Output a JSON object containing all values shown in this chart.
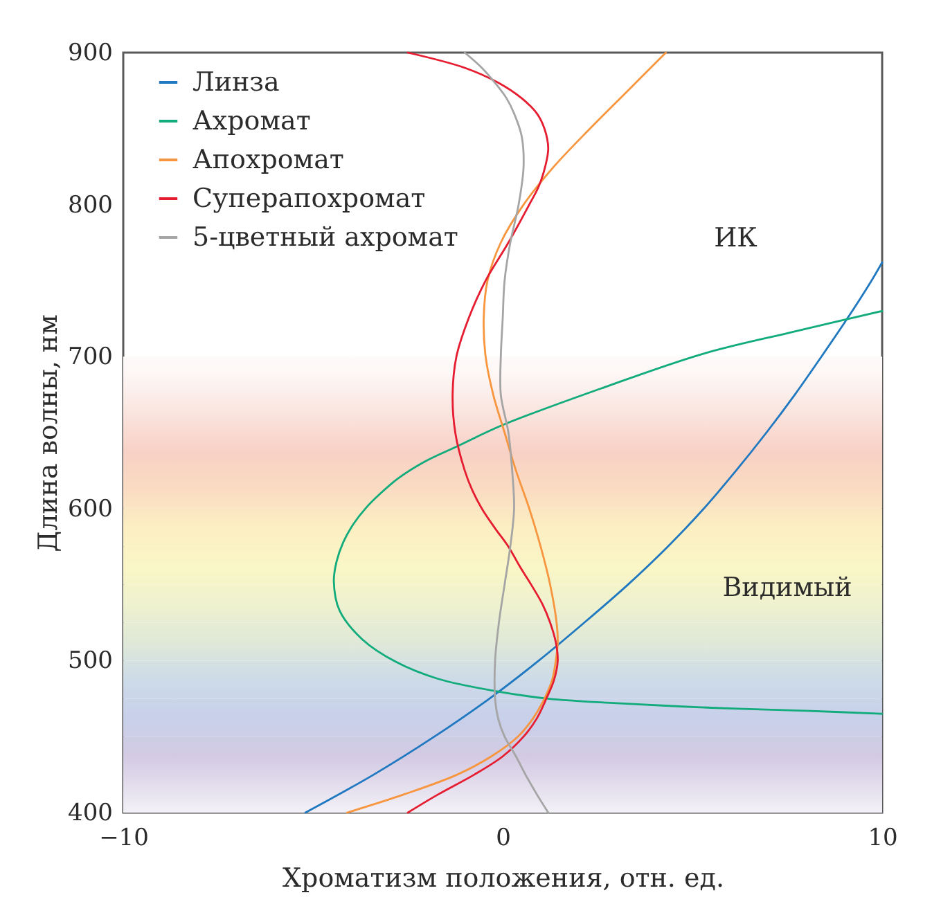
{
  "chart_data": {
    "type": "line",
    "xlabel": "Хроматизм положения, отн. ед.",
    "ylabel": "Длина волны, нм",
    "xlim": [
      -10,
      10
    ],
    "xticks": [
      {
        "value": -10,
        "label": "−10"
      },
      0,
      10
    ],
    "ylim": [
      400,
      900
    ],
    "yticks": [
      400,
      500,
      600,
      700,
      800,
      900
    ],
    "legend": "top left",
    "series": [
      {
        "name": "Линза",
        "color": "#2079c0",
        "x": [
          -5.2,
          -3.4,
          -1.8,
          -0.35,
          0.95,
          2.15,
          3.3,
          4.35,
          5.3,
          6.15,
          6.95,
          7.7,
          8.4,
          9.08,
          9.72,
          10
        ],
        "values": [
          400,
          425,
          450,
          475,
          500,
          525,
          550,
          575,
          600,
          625,
          650,
          675,
          700,
          725,
          750,
          762
        ]
      },
      {
        "name": "Ахромат",
        "color": "#12ab7c",
        "x": [
          10,
          8,
          5.5,
          3,
          1.2,
          -0.2,
          -1.7,
          -2.8,
          -3.7,
          -4.3,
          -4.45,
          -4.38,
          -4.2,
          -3.93,
          -3.62,
          -3.22,
          -2.75,
          -2.05,
          -1.2,
          0.0,
          2.7,
          5.3,
          7.6,
          10
        ],
        "values": [
          465,
          467,
          469,
          472,
          475,
          480,
          488,
          499,
          514,
          533,
          552,
          565,
          578,
          590,
          600,
          610,
          620,
          631,
          641,
          655,
          680,
          702,
          716,
          730
        ]
      },
      {
        "name": "Апохромат",
        "color": "#f7963f",
        "x": [
          -4.1,
          -2.6,
          -1.2,
          -0.3,
          0.4,
          0.8,
          1.1,
          1.3,
          1.4,
          1.45,
          1.42,
          1.25,
          1.0,
          0.7,
          0.35,
          0.05,
          -0.25,
          -0.45,
          -0.5,
          -0.4,
          -0.05,
          0.55,
          1.35,
          2.3,
          3.3,
          4.3
        ],
        "values": [
          400,
          412,
          425,
          437,
          450,
          462,
          475,
          487,
          500,
          512,
          525,
          550,
          575,
          600,
          625,
          650,
          675,
          700,
          725,
          750,
          775,
          800,
          825,
          850,
          875,
          900
        ]
      },
      {
        "name": "Суперапохромат",
        "color": "#e61c30",
        "x": [
          -2.5,
          -1.7,
          -0.75,
          0.0,
          0.55,
          0.9,
          1.15,
          1.35,
          1.45,
          1.4,
          1.25,
          1.05,
          0.75,
          0.45,
          0.15,
          -0.2,
          -0.55,
          -0.8,
          -1.0,
          -1.25,
          -1.32,
          -1.22,
          -0.9,
          -0.45,
          0.15,
          0.7,
          0.95,
          1.12,
          1.2,
          1.1,
          0.9,
          0.5,
          -0.1,
          -1.0,
          -2.5
        ],
        "values": [
          400,
          412,
          425,
          437,
          450,
          462,
          475,
          487,
          500,
          512,
          525,
          537,
          550,
          562,
          575,
          587,
          600,
          612,
          625,
          650,
          675,
          700,
          725,
          750,
          775,
          800,
          812,
          825,
          837,
          850,
          860,
          870,
          880,
          890,
          900
        ]
      },
      {
        "name": "5-цветный ахромат",
        "color": "#a5a5a5",
        "x": [
          1.2,
          0.9,
          0.6,
          0.35,
          0.05,
          -0.12,
          -0.2,
          -0.2,
          -0.1,
          0.05,
          0.2,
          0.3,
          0.25,
          0.15,
          -0.05,
          -0.05,
          0.0,
          0.05,
          0.2,
          0.42,
          0.55,
          0.5,
          0.3,
          0.1,
          -0.2,
          -0.55,
          -1.0
        ],
        "values": [
          400,
          412,
          425,
          437,
          450,
          462,
          475,
          500,
          525,
          550,
          575,
          600,
          625,
          650,
          675,
          700,
          725,
          750,
          775,
          800,
          825,
          845,
          860,
          870,
          880,
          890,
          900
        ]
      }
    ],
    "bands": [
      {
        "axis": "y",
        "from": 400,
        "to": 425,
        "color": "#e8e3f0"
      },
      {
        "axis": "y",
        "from": 425,
        "to": 450,
        "color": "#d3cae3"
      },
      {
        "axis": "y",
        "from": 450,
        "to": 475,
        "color": "#c8d0ea"
      },
      {
        "axis": "y",
        "from": 475,
        "to": 500,
        "color": "#cddbe8"
      },
      {
        "axis": "y",
        "from": 500,
        "to": 525,
        "color": "#e0e9d8"
      },
      {
        "axis": "y",
        "from": 525,
        "to": 550,
        "color": "#eff2cf"
      },
      {
        "axis": "y",
        "from": 550,
        "to": 575,
        "color": "#faf6c6"
      },
      {
        "axis": "y",
        "from": 575,
        "to": 600,
        "color": "#fcefc3"
      },
      {
        "axis": "y",
        "from": 600,
        "to": 625,
        "color": "#fadcc2"
      },
      {
        "axis": "y",
        "from": 625,
        "to": 650,
        "color": "#f8d1c6"
      },
      {
        "axis": "y",
        "from": 650,
        "to": 675,
        "color": "#fae4de"
      },
      {
        "axis": "y",
        "from": 675,
        "to": 700,
        "color": "#fdf6f5"
      }
    ],
    "annotations": [
      "ИК",
      {
        "text": "Видимый",
        "x": 7.5,
        "y": 548
      }
    ]
  }
}
